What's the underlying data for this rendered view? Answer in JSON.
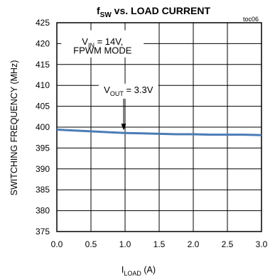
{
  "chart_data": {
    "type": "line",
    "title": {
      "main": "f",
      "sub": "SW",
      "rest": " vs. LOAD CURRENT"
    },
    "code": "toc06",
    "xlabel": {
      "main": "I",
      "sub": "LOAD",
      "rest": " (A)"
    },
    "ylabel": "SWITCHING FREQUENCY (MHz)",
    "xlim": [
      0,
      3
    ],
    "ylim": [
      375,
      425
    ],
    "xticks": [
      0,
      0.5,
      1,
      1.5,
      2,
      2.5,
      3
    ],
    "xtick_labels": [
      "0.0",
      "0.5",
      "1.0",
      "1.5",
      "2.0",
      "2.5",
      "3.0"
    ],
    "yticks": [
      375,
      380,
      385,
      390,
      395,
      400,
      405,
      410,
      415,
      420,
      425
    ],
    "ytick_labels": [
      "375",
      "380",
      "385",
      "390",
      "395",
      "400",
      "405",
      "410",
      "415",
      "420",
      "425"
    ],
    "grid": true,
    "series": [
      {
        "color": "#4a7cb5",
        "x": [
          0,
          0.25,
          0.5,
          0.75,
          1.0,
          1.25,
          1.5,
          1.75,
          2.0,
          2.25,
          2.5,
          2.75,
          3.0
        ],
        "y": [
          399.4,
          399.2,
          399.0,
          398.8,
          398.6,
          398.5,
          398.4,
          398.3,
          398.3,
          398.2,
          398.2,
          398.2,
          398.1
        ]
      }
    ],
    "annotations": [
      {
        "line1": {
          "main": "V",
          "sub": "IN",
          "rest": " = 14V,"
        },
        "line2": "FPWM MODE"
      },
      {
        "label": {
          "main": "V",
          "sub": "OUT",
          "rest": " = 3.3V"
        },
        "arrow_x": 1.0,
        "arrow_y": 398.6
      }
    ]
  }
}
